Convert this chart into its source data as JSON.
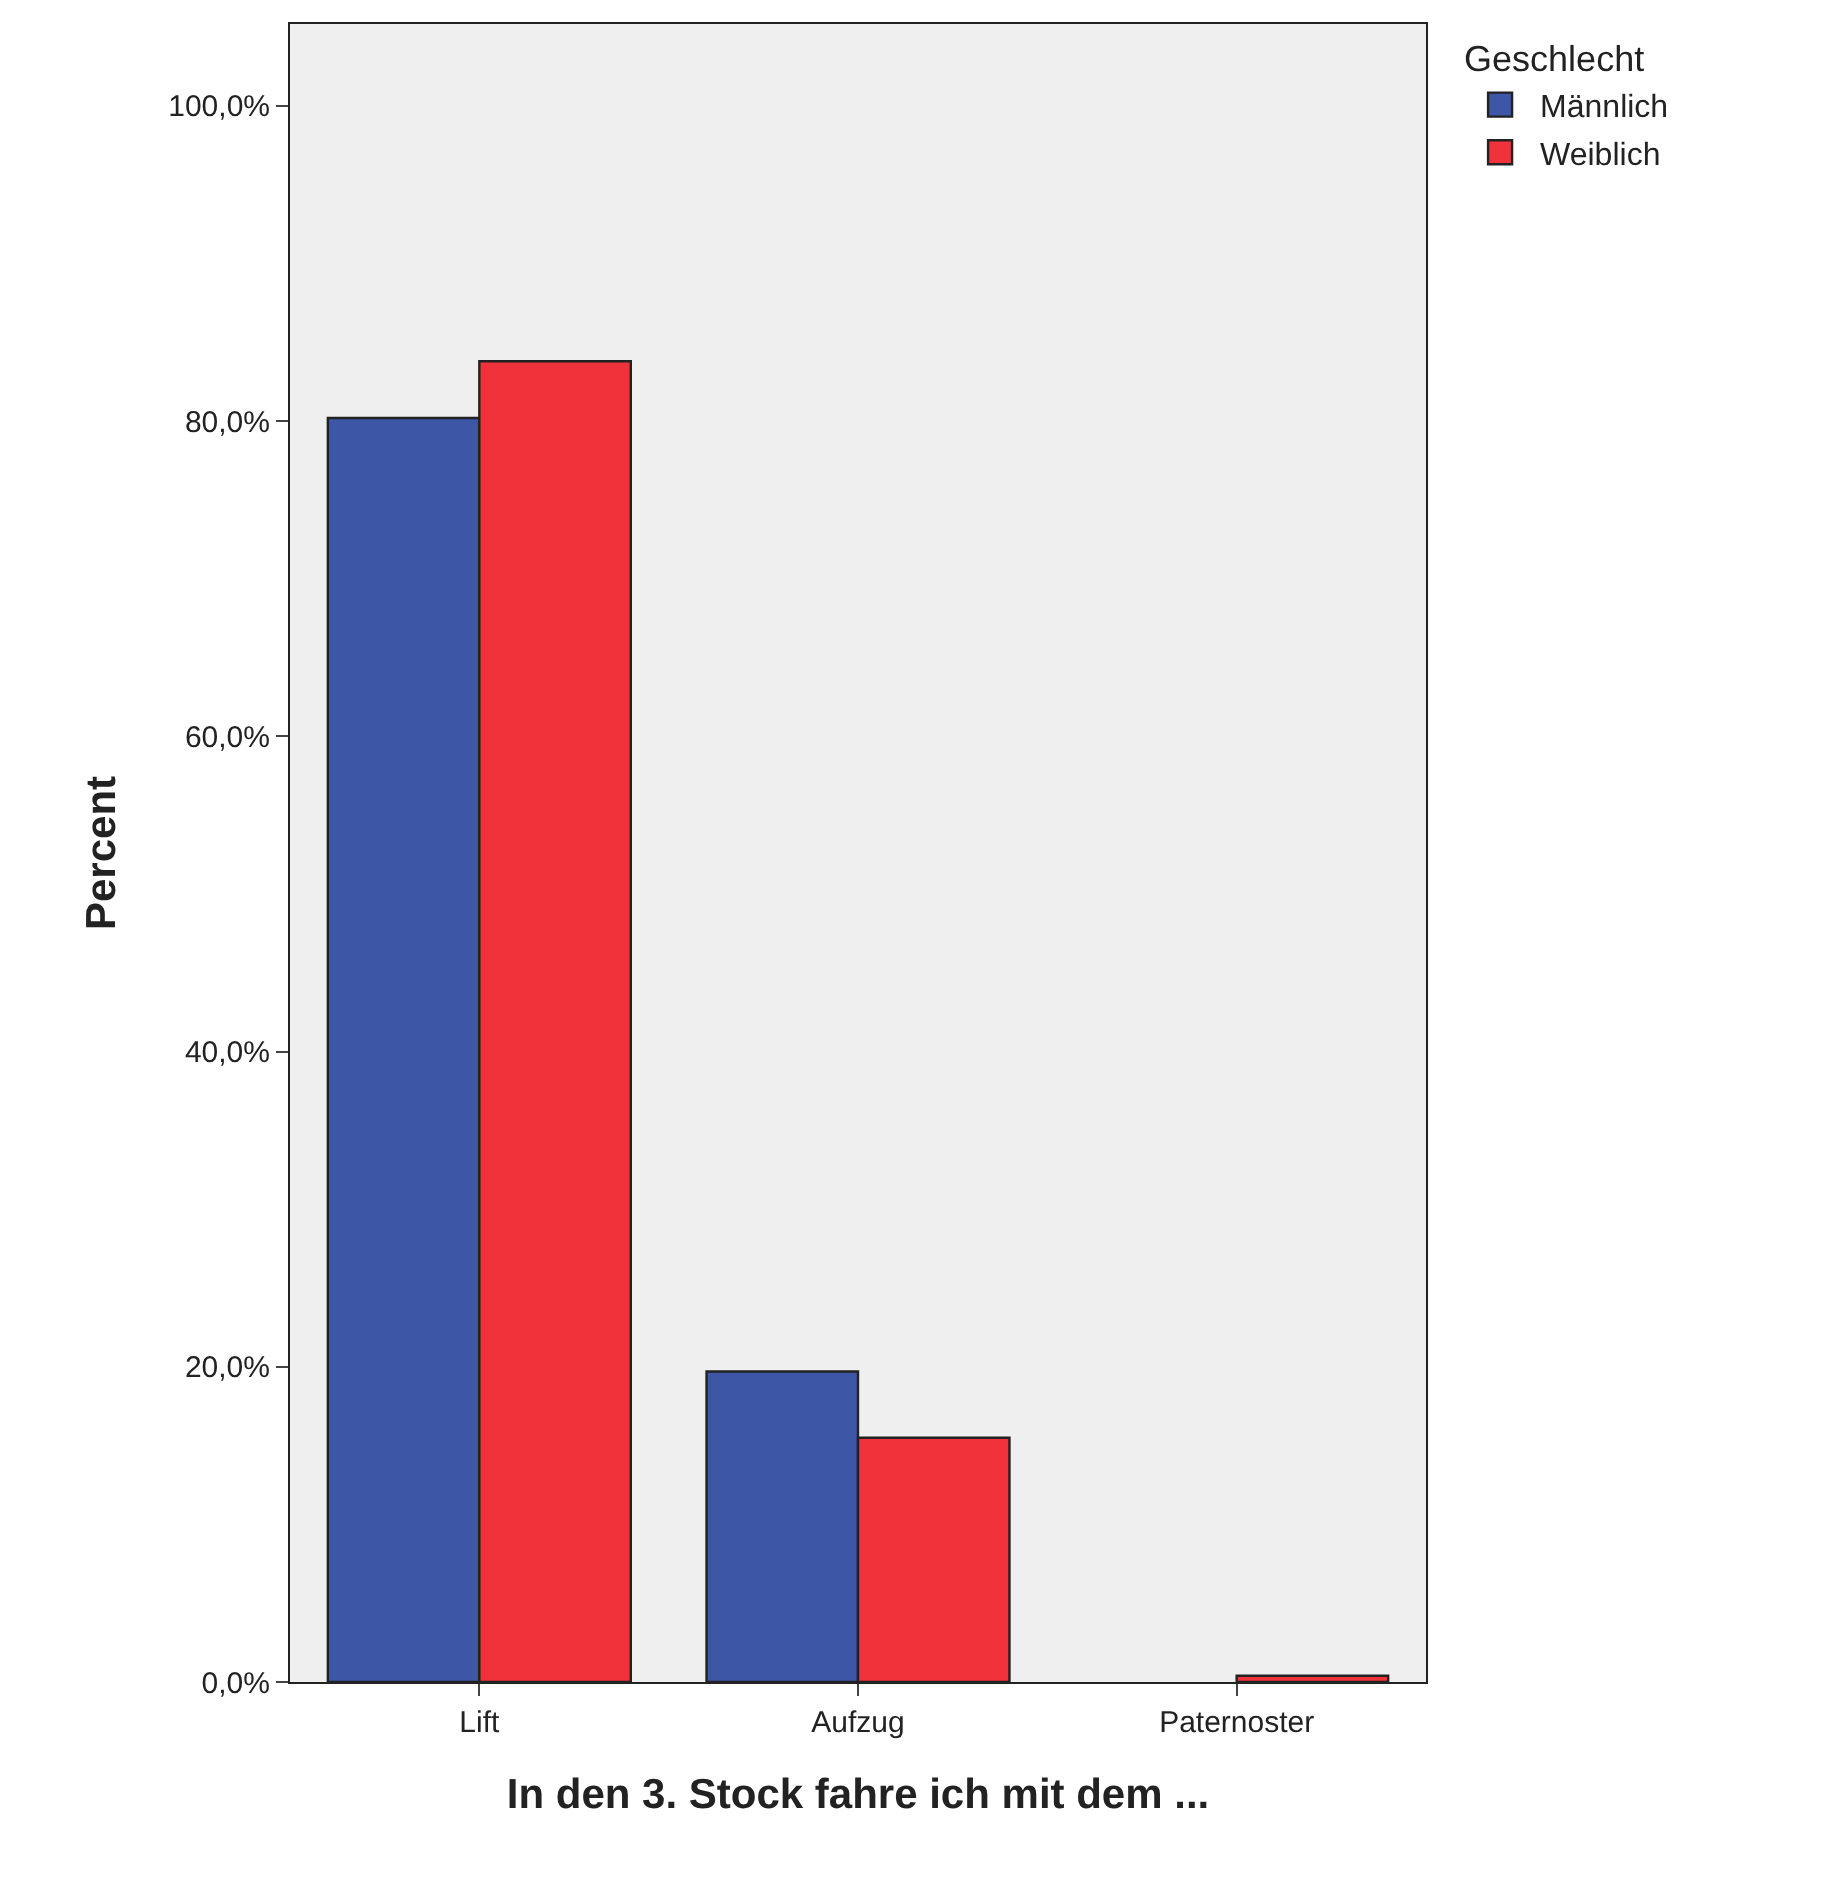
{
  "chart_data": {
    "type": "bar",
    "xlabel": "In den 3. Stock fahre ich mit dem ...",
    "ylabel": "Percent",
    "legend_title": "Geschlecht",
    "categories": [
      "Lift",
      "Aufzug",
      "Paternoster"
    ],
    "series": [
      {
        "name": "Männlich",
        "color": "#3d56a6",
        "values": [
          80.2,
          19.7,
          0
        ]
      },
      {
        "name": "Weiblich",
        "color": "#f0323a",
        "values": [
          83.8,
          15.5,
          0.4
        ]
      }
    ],
    "ylim": [
      0,
      105.2
    ],
    "yticks": [
      {
        "value": 0,
        "label": "0,0%"
      },
      {
        "value": 20,
        "label": "20,0%"
      },
      {
        "value": 40,
        "label": "40,0%"
      },
      {
        "value": 60,
        "label": "60,0%"
      },
      {
        "value": 80,
        "label": "80,0%"
      },
      {
        "value": 100,
        "label": "100,0%"
      }
    ],
    "grid": false,
    "legend": "top right"
  }
}
